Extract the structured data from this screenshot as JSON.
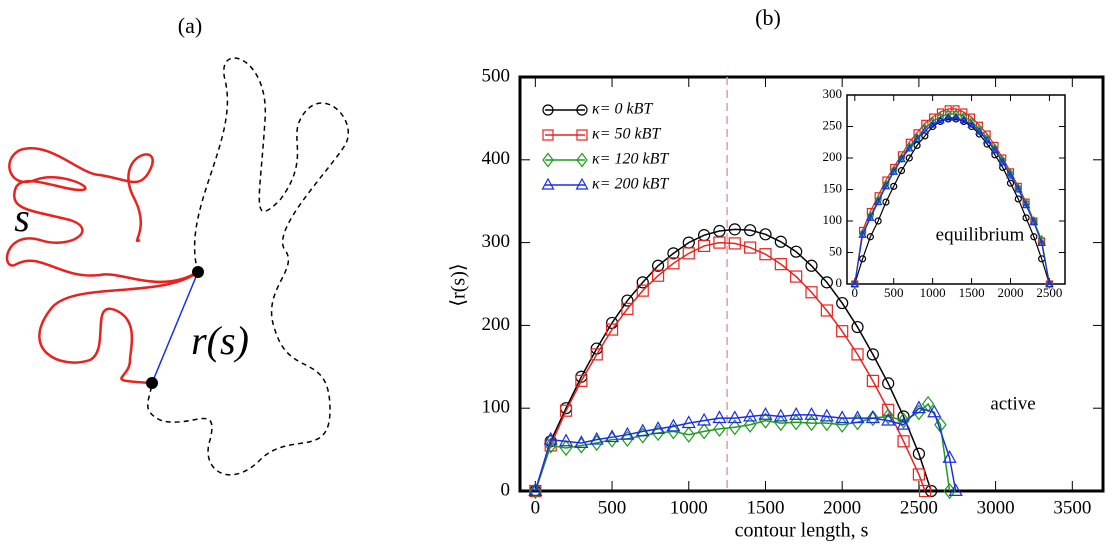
{
  "panel_a": {
    "label": "(a)",
    "s_label": "s",
    "r_label": "r(s)"
  },
  "panel_b_label": "(b)",
  "chart_data": [
    {
      "type": "line",
      "xlabel": "contour length, s",
      "ylabel": "⟨r(s)⟩",
      "annotation": "active",
      "xlim": [
        -100,
        3700
      ],
      "ylim": [
        0,
        500
      ],
      "xticks": [
        0,
        500,
        1000,
        1500,
        2000,
        2500,
        3000,
        3500
      ],
      "yticks": [
        0,
        100,
        200,
        300,
        400,
        500
      ],
      "vline": 1250,
      "vline_color": "#d9a0a8",
      "legend": "upper left",
      "series": [
        {
          "name": "κ= 0 kBT",
          "color": "#000000",
          "marker": "circle",
          "x": [
            0,
            100,
            200,
            300,
            400,
            500,
            600,
            700,
            800,
            900,
            1000,
            1100,
            1200,
            1300,
            1400,
            1500,
            1600,
            1700,
            1800,
            1900,
            2000,
            2100,
            2200,
            2300,
            2400,
            2500,
            2580
          ],
          "values": [
            0,
            60,
            100,
            138,
            172,
            203,
            230,
            252,
            272,
            287,
            300,
            309,
            314,
            316,
            315,
            310,
            301,
            289,
            272,
            252,
            227,
            198,
            165,
            130,
            90,
            45,
            0
          ]
        },
        {
          "name": "κ= 50 kBT",
          "color": "#e8231f",
          "marker": "square",
          "x": [
            0,
            100,
            200,
            300,
            400,
            500,
            600,
            700,
            800,
            900,
            1000,
            1100,
            1200,
            1300,
            1400,
            1500,
            1600,
            1700,
            1800,
            1900,
            2000,
            2100,
            2200,
            2300,
            2400,
            2500,
            2540
          ],
          "values": [
            0,
            55,
            97,
            133,
            165,
            195,
            220,
            242,
            260,
            275,
            287,
            296,
            300,
            299,
            294,
            286,
            274,
            259,
            240,
            218,
            193,
            165,
            133,
            98,
            60,
            20,
            0
          ]
        },
        {
          "name": "κ= 120 kBT",
          "color": "#1f9a1f",
          "marker": "diamond",
          "x": [
            0,
            100,
            200,
            300,
            400,
            500,
            600,
            700,
            800,
            900,
            1000,
            1100,
            1200,
            1300,
            1400,
            1500,
            1600,
            1700,
            1800,
            1900,
            2000,
            2100,
            2200,
            2300,
            2400,
            2500,
            2560,
            2640,
            2700
          ],
          "values": [
            0,
            55,
            52,
            55,
            58,
            62,
            63,
            67,
            70,
            72,
            68,
            72,
            75,
            77,
            80,
            85,
            82,
            83,
            82,
            82,
            80,
            83,
            88,
            90,
            85,
            95,
            105,
            80,
            0
          ]
        },
        {
          "name": "κ= 200 kBT",
          "color": "#1b2ee8",
          "marker": "triangle",
          "x": [
            0,
            100,
            200,
            300,
            400,
            500,
            600,
            700,
            800,
            900,
            1000,
            1100,
            1200,
            1300,
            1400,
            1500,
            1600,
            1700,
            1800,
            1900,
            2000,
            2100,
            2200,
            2300,
            2400,
            2500,
            2600,
            2700,
            2740
          ],
          "values": [
            0,
            62,
            60,
            58,
            62,
            65,
            68,
            72,
            75,
            78,
            82,
            85,
            88,
            88,
            90,
            92,
            90,
            92,
            92,
            90,
            88,
            88,
            88,
            85,
            80,
            100,
            95,
            40,
            0
          ]
        }
      ]
    },
    {
      "type": "line",
      "annotation": "equilibrium",
      "xlim": [
        -100,
        2700
      ],
      "ylim": [
        0,
        300
      ],
      "xticks": [
        0,
        500,
        1000,
        1500,
        2000,
        2500
      ],
      "yticks": [
        0,
        50,
        100,
        150,
        200,
        250,
        300
      ],
      "series": [
        {
          "color": "#000000",
          "marker": "circle",
          "x": [
            0,
            100,
            200,
            300,
            400,
            500,
            600,
            700,
            800,
            900,
            1000,
            1100,
            1200,
            1300,
            1400,
            1500,
            1600,
            1700,
            1800,
            1900,
            2000,
            2100,
            2200,
            2300,
            2400,
            2500
          ],
          "values": [
            0,
            40,
            75,
            100,
            130,
            155,
            180,
            200,
            220,
            235,
            250,
            258,
            262,
            262,
            258,
            250,
            238,
            222,
            205,
            185,
            160,
            135,
            105,
            75,
            40,
            0
          ]
        },
        {
          "color": "#e8231f",
          "marker": "square",
          "x": [
            0,
            100,
            200,
            300,
            400,
            500,
            600,
            700,
            800,
            900,
            1000,
            1100,
            1200,
            1300,
            1400,
            1500,
            1600,
            1700,
            1800,
            1900,
            2000,
            2100,
            2200,
            2300,
            2400,
            2500
          ],
          "values": [
            0,
            85,
            115,
            140,
            165,
            185,
            205,
            225,
            240,
            255,
            265,
            273,
            278,
            278,
            273,
            265,
            252,
            238,
            220,
            200,
            178,
            155,
            130,
            100,
            68,
            0
          ]
        },
        {
          "color": "#1f9a1f",
          "marker": "diamond",
          "x": [
            0,
            100,
            200,
            300,
            400,
            500,
            600,
            700,
            800,
            900,
            1000,
            1100,
            1200,
            1300,
            1400,
            1500,
            1600,
            1700,
            1800,
            1900,
            2000,
            2100,
            2200,
            2300,
            2400,
            2500
          ],
          "values": [
            0,
            80,
            108,
            133,
            158,
            180,
            200,
            218,
            232,
            247,
            258,
            265,
            270,
            270,
            266,
            258,
            246,
            232,
            215,
            196,
            175,
            152,
            128,
            100,
            70,
            0
          ]
        },
        {
          "color": "#1b2ee8",
          "marker": "triangle",
          "x": [
            0,
            100,
            200,
            300,
            400,
            500,
            600,
            700,
            800,
            900,
            1000,
            1100,
            1200,
            1300,
            1400,
            1500,
            1600,
            1700,
            1800,
            1900,
            2000,
            2100,
            2200,
            2300,
            2400,
            2500
          ],
          "values": [
            0,
            78,
            105,
            130,
            155,
            178,
            198,
            215,
            230,
            243,
            253,
            260,
            264,
            264,
            260,
            253,
            242,
            228,
            212,
            193,
            172,
            150,
            125,
            98,
            65,
            0
          ]
        }
      ]
    }
  ]
}
